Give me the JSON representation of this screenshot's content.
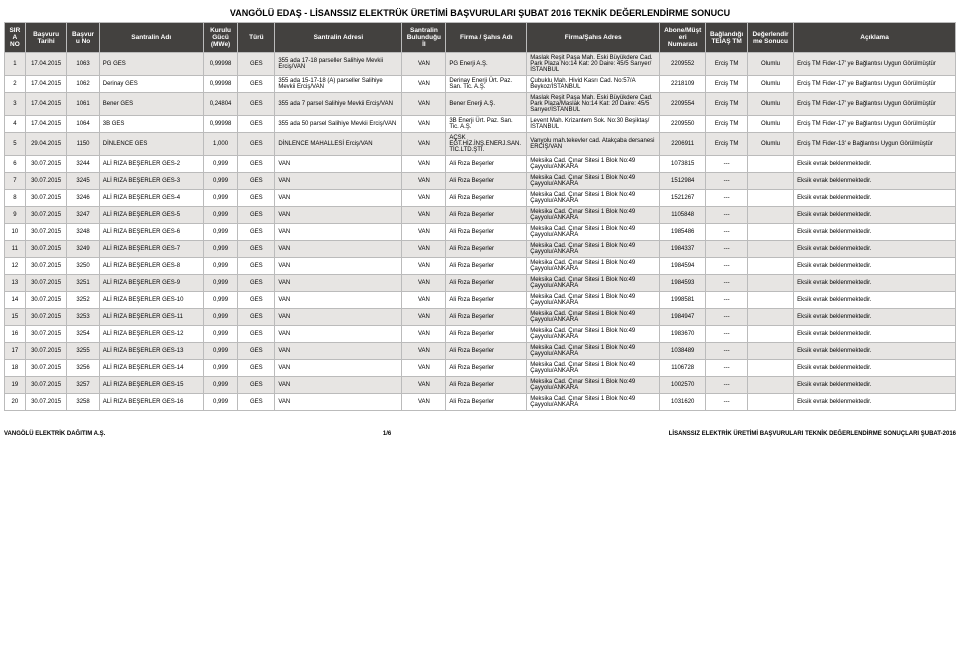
{
  "title": "VANGÖLÜ EDAŞ - LİSANSSIZ ELEKTRÜK ÜRETİMİ BAŞVURULARI ŞUBAT 2016 TEKNİK DEĞERLENDİRME SONUCU",
  "columns": [
    "SIRA NO",
    "Başvuru Tarihi",
    "Başvuru No",
    "Santralin Adı",
    "Kurulu Gücü (MWe)",
    "Türü",
    "Santralin Adresi",
    "Santralin Bulunduğu İl",
    "Firma / Şahıs Adı",
    "Firma/Şahıs Adres",
    "Abone/Müşteri Numarası",
    "Bağlandığı TEİAŞ TM",
    "Değerlendirme Sonucu",
    "Açıklama"
  ],
  "rows": [
    {
      "no": "1",
      "tarih": "17.04.2015",
      "bno": "1063",
      "ad": "PG GES",
      "guc": "0,99998",
      "tur": "GES",
      "adres": "355 ada 17-18 parseller Salihiye Mevkii Erciş/VAN",
      "il": "VAN",
      "firma": "PG Enerji A.Ş.",
      "fadres": "Maslak Reşit Paşa Mah. Eski Büyükdere Cad. Park Plaza No:14 Kat: 20 Daire: 45/5 Sarıyer/İSTANBUL",
      "abone": "2209552",
      "tm": "Erciş TM",
      "sonuc": "Olumlu",
      "acik": "Erciş TM Fider-17' ye Bağlantısı Uygun Görülmüştür"
    },
    {
      "no": "2",
      "tarih": "17.04.2015",
      "bno": "1062",
      "ad": "Derinay GES",
      "guc": "0,99998",
      "tur": "GES",
      "adres": "355 ada 15-17-18 (A) parseller Salihiye Mevkii Erciş/VAN",
      "il": "VAN",
      "firma": "Derinay Enerji Ürt. Paz. San. Tic. A.Ş.",
      "fadres": "Çubuklu Mah. Hivid Kasrı Cad. No:57/A Beykoz/İSTANBUL",
      "abone": "2218109",
      "tm": "Erciş TM",
      "sonuc": "Olumlu",
      "acik": "Erciş TM Fider-17' ye Bağlantısı Uygun Görülmüştür"
    },
    {
      "no": "3",
      "tarih": "17.04.2015",
      "bno": "1061",
      "ad": "Bener GES",
      "guc": "0,24804",
      "tur": "GES",
      "adres": "355 ada 7 parsel Salihiye Mevkii Erciş/VAN",
      "il": "VAN",
      "firma": "Bener Enerji A.Ş.",
      "fadres": "Maslak Reşit Paşa Mah. Eski Büyükdere Cad. Park Plaza/Maslak No:14 Kat: 20 Daire: 45/5 Sarıyer/İSTANBUL",
      "abone": "2209554",
      "tm": "Erciş TM",
      "sonuc": "Olumlu",
      "acik": "Erciş TM Fider-17' ye Bağlantısı Uygun Görülmüştür"
    },
    {
      "no": "4",
      "tarih": "17.04.2015",
      "bno": "1064",
      "ad": "3B GES",
      "guc": "0,99998",
      "tur": "GES",
      "adres": "355 ada 50 parsel Salihiye Mevkii Erciş/VAN",
      "il": "VAN",
      "firma": "3B Enerji Ürt. Paz. San. Tic. A.Ş.",
      "fadres": "Levent Mah. Krizantem Sok. No:30 Beşiktaş/İSTANBUL",
      "abone": "2209550",
      "tm": "Erciş TM",
      "sonuc": "Olumlu",
      "acik": "Erciş TM Fider-17' ye Bağlantısı Uygun Görülmüştür"
    },
    {
      "no": "5",
      "tarih": "29.04.2015",
      "bno": "1150",
      "ad": "DİNLENCE GES",
      "guc": "1,000",
      "tur": "GES",
      "adres": "DİNLENCE MAHALLESİ Erciş/VAN",
      "il": "VAN",
      "firma": "AÇSK EĞT.HİZ.İNŞ.ENERJ.SAN.TİC.LTD.ŞTİ.",
      "fadres": "Vanyolu mah.tekevler cad. Atakçaba dersanesi ERCİŞ/VAN",
      "abone": "2206911",
      "tm": "Erciş TM",
      "sonuc": "Olumlu",
      "acik": "Erciş TM Fider-13' e Bağlantısı Uygun Görülmüştür"
    },
    {
      "no": "6",
      "tarih": "30.07.2015",
      "bno": "3244",
      "ad": "ALİ RIZA BEŞERLER GES-2",
      "guc": "0,999",
      "tur": "GES",
      "adres": "VAN",
      "il": "VAN",
      "firma": "Ali Rıza Beşerler",
      "fadres": "Meksika Cad. Çınar Sitesi 1 Blok No:49 Çayyolu/ANKARA",
      "abone": "1073815",
      "tm": "---",
      "sonuc": "",
      "acik": "Eksik evrak beklenmektedir."
    },
    {
      "no": "7",
      "tarih": "30.07.2015",
      "bno": "3245",
      "ad": "ALİ RIZA BEŞERLER GES-3",
      "guc": "0,999",
      "tur": "GES",
      "adres": "VAN",
      "il": "VAN",
      "firma": "Ali Rıza Beşerler",
      "fadres": "Meksika Cad. Çınar Sitesi 1 Blok No:49 Çayyolu/ANKARA",
      "abone": "1512984",
      "tm": "---",
      "sonuc": "",
      "acik": "Eksik evrak beklenmektedir."
    },
    {
      "no": "8",
      "tarih": "30.07.2015",
      "bno": "3246",
      "ad": "ALİ RIZA BEŞERLER GES-4",
      "guc": "0,999",
      "tur": "GES",
      "adres": "VAN",
      "il": "VAN",
      "firma": "Ali Rıza Beşerler",
      "fadres": "Meksika Cad. Çınar Sitesi 1 Blok No:49 Çayyolu/ANKARA",
      "abone": "1521267",
      "tm": "---",
      "sonuc": "",
      "acik": "Eksik evrak beklenmektedir."
    },
    {
      "no": "9",
      "tarih": "30.07.2015",
      "bno": "3247",
      "ad": "ALİ RIZA BEŞERLER GES-5",
      "guc": "0,999",
      "tur": "GES",
      "adres": "VAN",
      "il": "VAN",
      "firma": "Ali Rıza Beşerler",
      "fadres": "Meksika Cad. Çınar Sitesi 1 Blok No:49 Çayyolu/ANKARA",
      "abone": "1105848",
      "tm": "---",
      "sonuc": "",
      "acik": "Eksik evrak beklenmektedir."
    },
    {
      "no": "10",
      "tarih": "30.07.2015",
      "bno": "3248",
      "ad": "ALİ RIZA BEŞERLER GES-6",
      "guc": "0,999",
      "tur": "GES",
      "adres": "VAN",
      "il": "VAN",
      "firma": "Ali Rıza Beşerler",
      "fadres": "Meksika Cad. Çınar Sitesi 1 Blok No:49 Çayyolu/ANKARA",
      "abone": "1985486",
      "tm": "---",
      "sonuc": "",
      "acik": "Eksik evrak beklenmektedir."
    },
    {
      "no": "11",
      "tarih": "30.07.2015",
      "bno": "3249",
      "ad": "ALİ RIZA BEŞERLER GES-7",
      "guc": "0,999",
      "tur": "GES",
      "adres": "VAN",
      "il": "VAN",
      "firma": "Ali Rıza Beşerler",
      "fadres": "Meksika Cad. Çınar Sitesi 1 Blok No:49 Çayyolu/ANKARA",
      "abone": "1984337",
      "tm": "---",
      "sonuc": "",
      "acik": "Eksik evrak beklenmektedir."
    },
    {
      "no": "12",
      "tarih": "30.07.2015",
      "bno": "3250",
      "ad": "ALİ RIZA BEŞERLER GES-8",
      "guc": "0,999",
      "tur": "GES",
      "adres": "VAN",
      "il": "VAN",
      "firma": "Ali Rıza Beşerler",
      "fadres": "Meksika Cad. Çınar Sitesi 1 Blok No:49 Çayyolu/ANKARA",
      "abone": "1984594",
      "tm": "---",
      "sonuc": "",
      "acik": "Eksik evrak beklenmektedir."
    },
    {
      "no": "13",
      "tarih": "30.07.2015",
      "bno": "3251",
      "ad": "ALİ RIZA BEŞERLER GES-9",
      "guc": "0,999",
      "tur": "GES",
      "adres": "VAN",
      "il": "VAN",
      "firma": "Ali Rıza Beşerler",
      "fadres": "Meksika Cad. Çınar Sitesi 1 Blok No:49 Çayyolu/ANKARA",
      "abone": "1984593",
      "tm": "---",
      "sonuc": "",
      "acik": "Eksik evrak beklenmektedir."
    },
    {
      "no": "14",
      "tarih": "30.07.2015",
      "bno": "3252",
      "ad": "ALİ RIZA BEŞERLER GES-10",
      "guc": "0,999",
      "tur": "GES",
      "adres": "VAN",
      "il": "VAN",
      "firma": "Ali Rıza Beşerler",
      "fadres": "Meksika Cad. Çınar Sitesi 1 Blok No:49 Çayyolu/ANKARA",
      "abone": "1998581",
      "tm": "---",
      "sonuc": "",
      "acik": "Eksik evrak beklenmektedir."
    },
    {
      "no": "15",
      "tarih": "30.07.2015",
      "bno": "3253",
      "ad": "ALİ RIZA BEŞERLER GES-11",
      "guc": "0,999",
      "tur": "GES",
      "adres": "VAN",
      "il": "VAN",
      "firma": "Ali Rıza Beşerler",
      "fadres": "Meksika Cad. Çınar Sitesi 1 Blok No:49 Çayyolu/ANKARA",
      "abone": "1984947",
      "tm": "---",
      "sonuc": "",
      "acik": "Eksik evrak beklenmektedir."
    },
    {
      "no": "16",
      "tarih": "30.07.2015",
      "bno": "3254",
      "ad": "ALİ RIZA BEŞERLER GES-12",
      "guc": "0,999",
      "tur": "GES",
      "adres": "VAN",
      "il": "VAN",
      "firma": "Ali Rıza Beşerler",
      "fadres": "Meksika Cad. Çınar Sitesi 1 Blok No:49 Çayyolu/ANKARA",
      "abone": "1983670",
      "tm": "---",
      "sonuc": "",
      "acik": "Eksik evrak beklenmektedir."
    },
    {
      "no": "17",
      "tarih": "30.07.2015",
      "bno": "3255",
      "ad": "ALİ RIZA BEŞERLER GES-13",
      "guc": "0,999",
      "tur": "GES",
      "adres": "VAN",
      "il": "VAN",
      "firma": "Ali Rıza Beşerler",
      "fadres": "Meksika Cad. Çınar Sitesi 1 Blok No:49 Çayyolu/ANKARA",
      "abone": "1038489",
      "tm": "---",
      "sonuc": "",
      "acik": "Eksik evrak beklenmektedir."
    },
    {
      "no": "18",
      "tarih": "30.07.2015",
      "bno": "3256",
      "ad": "ALİ RIZA BEŞERLER GES-14",
      "guc": "0,999",
      "tur": "GES",
      "adres": "VAN",
      "il": "VAN",
      "firma": "Ali Rıza Beşerler",
      "fadres": "Meksika Cad. Çınar Sitesi 1 Blok No:49 Çayyolu/ANKARA",
      "abone": "1106728",
      "tm": "---",
      "sonuc": "",
      "acik": "Eksik evrak beklenmektedir."
    },
    {
      "no": "19",
      "tarih": "30.07.2015",
      "bno": "3257",
      "ad": "ALİ RIZA BEŞERLER GES-15",
      "guc": "0,999",
      "tur": "GES",
      "adres": "VAN",
      "il": "VAN",
      "firma": "Ali Rıza Beşerler",
      "fadres": "Meksika Cad. Çınar Sitesi 1 Blok No:49 Çayyolu/ANKARA",
      "abone": "1002570",
      "tm": "---",
      "sonuc": "",
      "acik": "Eksik evrak beklenmektedir."
    },
    {
      "no": "20",
      "tarih": "30.07.2015",
      "bno": "3258",
      "ad": "ALİ RIZA BEŞERLER GES-16",
      "guc": "0,999",
      "tur": "GES",
      "adres": "VAN",
      "il": "VAN",
      "firma": "Ali Rıza Beşerler",
      "fadres": "Meksika Cad. Çınar Sitesi 1 Blok No:49 Çayyolu/ANKARA",
      "abone": "1031620",
      "tm": "---",
      "sonuc": "",
      "acik": "Eksik evrak beklenmektedir."
    }
  ],
  "footer_left": "VANGÖLÜ ELEKTRİK DAĞITIM A.Ş.",
  "footer_center": "1/6",
  "footer_right": "LİSANSSIZ ELEKTRİK ÜRETİMİ BAŞVURULARI TEKNİK DEĞERLENDİRME SONUÇLARI ŞUBAT-2016",
  "style": {
    "header_bg": "#43413f",
    "header_fg": "#ffffff",
    "row_alt_bg": "#e7e5e3",
    "row_bg": "#ffffff",
    "border": "#bbbbbb",
    "font": "Arial",
    "title_fontsize": 9,
    "cell_fontsize": 6
  }
}
